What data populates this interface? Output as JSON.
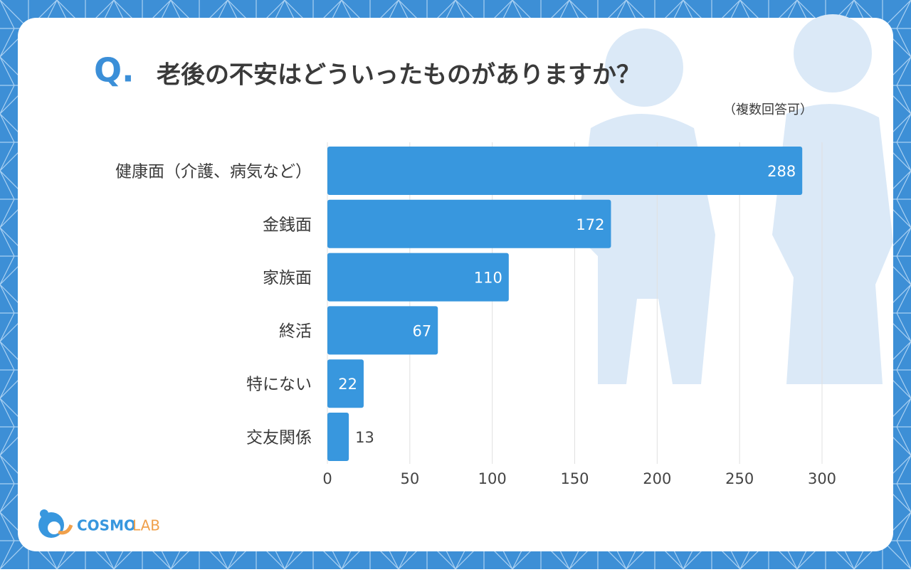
{
  "chart_data": {
    "type": "hbar",
    "title_prefix": "Q.",
    "title": "老後の不安はどういったものがありますか？",
    "subtitle": "（複数回答可）",
    "categories": [
      "健康面（介護、病気など）",
      "金銭面",
      "家族面",
      "終活",
      "特にない",
      "交友関係"
    ],
    "values": [
      288,
      172,
      110,
      67,
      22,
      13
    ],
    "color": "#3897de",
    "xlim": [
      0,
      300
    ],
    "xticks": [
      0,
      50,
      100,
      150,
      200,
      250,
      300
    ],
    "grid": true
  },
  "brand": {
    "name": "COSMO",
    "suffix": "LAB"
  }
}
